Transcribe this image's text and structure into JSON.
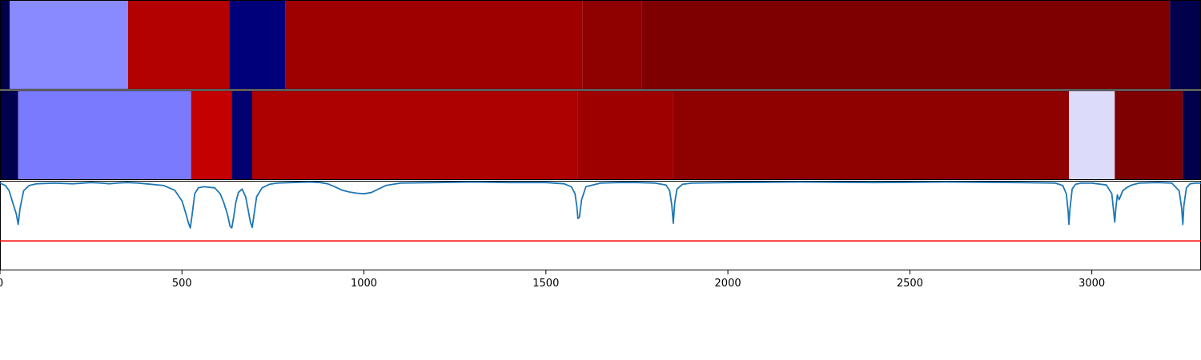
{
  "chart_data": {
    "type": "heatmap",
    "title": "",
    "xlabel": "",
    "ylabel": "",
    "xlim": [
      0,
      3300
    ],
    "grid": false,
    "xticks": [
      0,
      500,
      1000,
      1500,
      2000,
      2500,
      3000
    ],
    "xtick_labels": [
      "0",
      "500",
      "1000",
      "1500",
      "2000",
      "2500",
      "3000"
    ],
    "segment_rows": [
      {
        "segments": [
          {
            "start": 0,
            "end": 27,
            "color": "#00004d"
          },
          {
            "start": 27,
            "end": 352,
            "color": "#8a8aff"
          },
          {
            "start": 352,
            "end": 630,
            "color": "#b30000"
          },
          {
            "start": 630,
            "end": 784,
            "color": "#00007a"
          },
          {
            "start": 784,
            "end": 1600,
            "color": "#9e0000"
          },
          {
            "start": 1600,
            "end": 1763,
            "color": "#8f0000"
          },
          {
            "start": 1763,
            "end": 3215,
            "color": "#7f0000"
          },
          {
            "start": 3215,
            "end": 3300,
            "color": "#00004d"
          }
        ]
      },
      {
        "segments": [
          {
            "start": 0,
            "end": 50,
            "color": "#00004d"
          },
          {
            "start": 50,
            "end": 525,
            "color": "#7a7aff"
          },
          {
            "start": 525,
            "end": 637,
            "color": "#c40000"
          },
          {
            "start": 637,
            "end": 693,
            "color": "#000070"
          },
          {
            "start": 693,
            "end": 1587,
            "color": "#ad0000"
          },
          {
            "start": 1587,
            "end": 1850,
            "color": "#9e0000"
          },
          {
            "start": 1850,
            "end": 2937,
            "color": "#8f0000"
          },
          {
            "start": 2937,
            "end": 3063,
            "color": "#dcdcfa"
          },
          {
            "start": 3063,
            "end": 3250,
            "color": "#7f0000"
          },
          {
            "start": 3250,
            "end": 3300,
            "color": "#00004d"
          }
        ]
      }
    ],
    "line_panel": {
      "ylim": [
        -1.5,
        0.02
      ],
      "baseline": {
        "y": -1.0,
        "color": "#ff0000"
      },
      "series_color": "#1f77b4",
      "series": {
        "x": [
          0,
          15,
          25,
          35,
          45,
          50,
          55,
          65,
          80,
          100,
          150,
          200,
          250,
          280,
          300,
          320,
          350,
          380,
          400,
          450,
          480,
          500,
          510,
          518,
          523,
          528,
          535,
          545,
          560,
          590,
          605,
          615,
          625,
          632,
          637,
          642,
          648,
          655,
          665,
          675,
          682,
          688,
          693,
          698,
          705,
          720,
          740,
          760,
          800,
          850,
          880,
          900,
          920,
          940,
          960,
          980,
          1000,
          1020,
          1040,
          1060,
          1100,
          1200,
          1300,
          1400,
          1500,
          1550,
          1570,
          1580,
          1585,
          1588,
          1592,
          1598,
          1610,
          1650,
          1700,
          1750,
          1800,
          1830,
          1840,
          1846,
          1850,
          1854,
          1860,
          1875,
          1900,
          2000,
          2200,
          2400,
          2600,
          2800,
          2900,
          2920,
          2930,
          2935,
          2937,
          2940,
          2946,
          2955,
          2970,
          3000,
          3040,
          3055,
          3060,
          3063,
          3066,
          3070,
          3075,
          3085,
          3095,
          3110,
          3130,
          3180,
          3220,
          3240,
          3247,
          3250,
          3253,
          3260,
          3270,
          3285,
          3300
        ],
        "y": [
          -0.02,
          -0.06,
          -0.15,
          -0.35,
          -0.55,
          -0.72,
          -0.45,
          -0.15,
          -0.06,
          -0.03,
          -0.02,
          -0.03,
          -0.01,
          -0.02,
          -0.03,
          -0.02,
          -0.01,
          -0.02,
          -0.03,
          -0.06,
          -0.14,
          -0.32,
          -0.52,
          -0.7,
          -0.78,
          -0.55,
          -0.2,
          -0.1,
          -0.08,
          -0.1,
          -0.2,
          -0.35,
          -0.55,
          -0.75,
          -0.78,
          -0.6,
          -0.35,
          -0.18,
          -0.12,
          -0.25,
          -0.48,
          -0.68,
          -0.77,
          -0.55,
          -0.25,
          -0.1,
          -0.04,
          -0.02,
          -0.01,
          -0.0,
          -0.01,
          -0.03,
          -0.08,
          -0.14,
          -0.17,
          -0.19,
          -0.2,
          -0.18,
          -0.12,
          -0.06,
          -0.02,
          -0.01,
          -0.0,
          -0.01,
          -0.01,
          -0.03,
          -0.08,
          -0.2,
          -0.42,
          -0.62,
          -0.6,
          -0.3,
          -0.08,
          -0.02,
          -0.01,
          -0.01,
          -0.02,
          -0.05,
          -0.15,
          -0.4,
          -0.7,
          -0.35,
          -0.12,
          -0.04,
          -0.02,
          -0.01,
          -0.0,
          -0.01,
          -0.0,
          -0.01,
          -0.02,
          -0.06,
          -0.2,
          -0.5,
          -0.72,
          -0.45,
          -0.12,
          -0.04,
          -0.02,
          -0.02,
          -0.05,
          -0.2,
          -0.5,
          -0.68,
          -0.45,
          -0.22,
          -0.3,
          -0.15,
          -0.1,
          -0.05,
          -0.02,
          -0.01,
          -0.02,
          -0.15,
          -0.45,
          -0.72,
          -0.4,
          -0.1,
          -0.03,
          -0.02,
          -0.02
        ]
      }
    }
  }
}
